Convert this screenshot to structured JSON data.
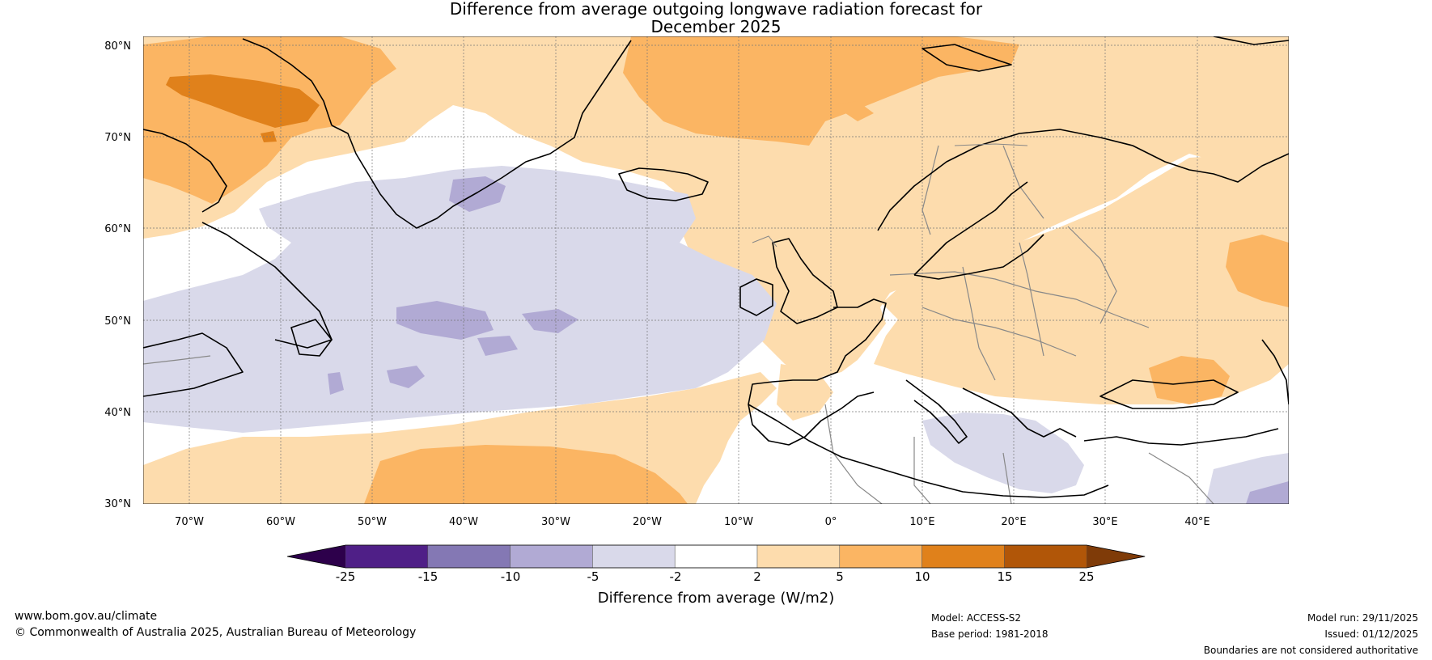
{
  "title": {
    "line1": "Difference from average outgoing longwave radiation forecast for",
    "line2": "December 2025"
  },
  "map": {
    "lon_range": [
      -75,
      50
    ],
    "lat_range": [
      30,
      81
    ],
    "lat_ticks": [
      {
        "value": 80,
        "label": "80°N"
      },
      {
        "value": 70,
        "label": "70°N"
      },
      {
        "value": 60,
        "label": "60°N"
      },
      {
        "value": 50,
        "label": "50°N"
      },
      {
        "value": 40,
        "label": "40°N"
      },
      {
        "value": 30,
        "label": "30°N"
      }
    ],
    "lon_ticks": [
      {
        "value": -70,
        "label": "70°W"
      },
      {
        "value": -60,
        "label": "60°W"
      },
      {
        "value": -50,
        "label": "50°W"
      },
      {
        "value": -40,
        "label": "40°W"
      },
      {
        "value": -30,
        "label": "30°W"
      },
      {
        "value": -20,
        "label": "20°W"
      },
      {
        "value": -10,
        "label": "10°W"
      },
      {
        "value": 0,
        "label": "0°"
      },
      {
        "value": 10,
        "label": "10°E"
      },
      {
        "value": 20,
        "label": "20°E"
      },
      {
        "value": 30,
        "label": "30°E"
      },
      {
        "value": 40,
        "label": "40°E"
      }
    ]
  },
  "colorbar": {
    "label": "Difference from average (W/m2)",
    "ticks": [
      "-25",
      "-15",
      "-10",
      "-5",
      "-2",
      "2",
      "5",
      "10",
      "15",
      "25"
    ],
    "colors": [
      "#4f1f87",
      "#8478b4",
      "#b1aad4",
      "#d9d9ea",
      "#ffffff",
      "#fddcad",
      "#fbb563",
      "#e0811b",
      "#b15608"
    ],
    "under_color": "#2d004b",
    "over_color": "#7f3b08"
  },
  "palette": {
    "ocean_white": "#ffffff",
    "coast": "#000000",
    "border": "#888888",
    "grid": "#777777"
  },
  "footer": {
    "website": "www.bom.gov.au/climate",
    "copyright": "© Commonwealth of Australia 2025, Australian Bureau of Meteorology",
    "model": "Model: ACCESS-S2",
    "base_period": "Base period: 1981-2018",
    "model_run": "Model run: 29/11/2025",
    "issued": "Issued: 01/12/2025",
    "disclaimer": "Boundaries are not considered authoritative"
  }
}
